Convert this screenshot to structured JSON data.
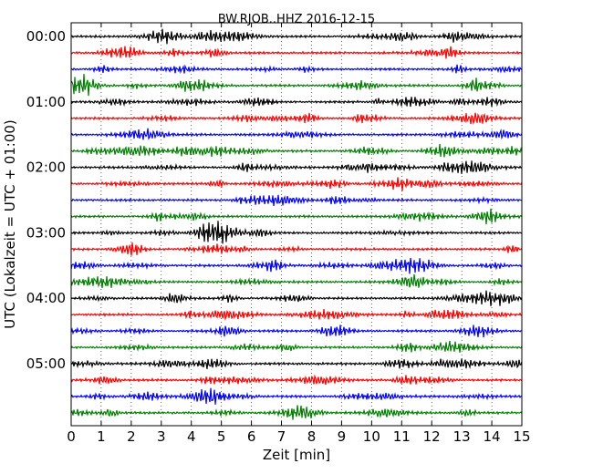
{
  "chart_data": {
    "type": "line",
    "title": "BW.RJOB..HHZ 2016-12-15",
    "xlabel": "Zeit  [min]",
    "ylabel": "UTC (Lokalzeit = UTC + 01:00)",
    "xlim": [
      0,
      15
    ],
    "x_ticks": [
      "0",
      "1",
      "2",
      "3",
      "4",
      "5",
      "6",
      "7",
      "8",
      "9",
      "10",
      "11",
      "12",
      "13",
      "14",
      "15"
    ],
    "y_tick_labels": [
      "00:00",
      "01:00",
      "02:00",
      "03:00",
      "04:00",
      "05:00"
    ],
    "traces_per_hour": 4,
    "trace_count": 24,
    "trace_colors": [
      "#000000",
      "#ff0000",
      "#0000ff",
      "#007f00"
    ],
    "grid": "vertical dotted",
    "legend": "none"
  }
}
